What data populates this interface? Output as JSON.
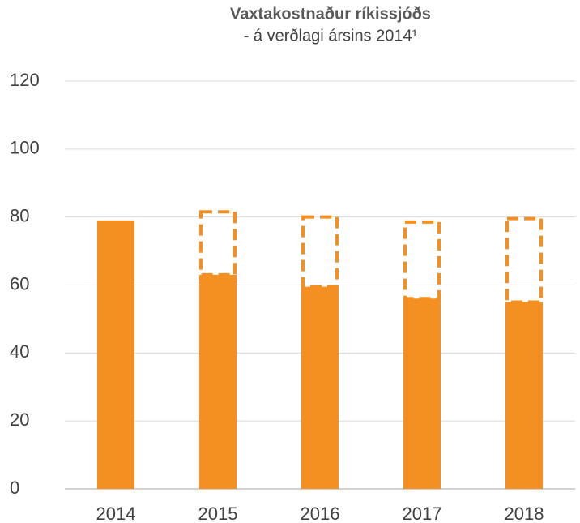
{
  "chart_data": {
    "type": "stacked-bar",
    "title": "Vaxtakostnaður ríkissjóðs",
    "subtitle": "- á verðlagi ársins 2014¹",
    "categories": [
      "2014",
      "2015",
      "2016",
      "2017",
      "2018"
    ],
    "series": [
      {
        "color": "#f39021",
        "style": "solid",
        "values": [
          79,
          63,
          59.5,
          56,
          55
        ]
      },
      {
        "color": "#f39021",
        "style": "dashed",
        "values": [
          null,
          19,
          21,
          23,
          25
        ]
      }
    ],
    "ylim": [
      0,
      120
    ],
    "yticks": [
      0,
      20,
      40,
      60,
      80,
      100,
      120
    ],
    "grid": true
  }
}
